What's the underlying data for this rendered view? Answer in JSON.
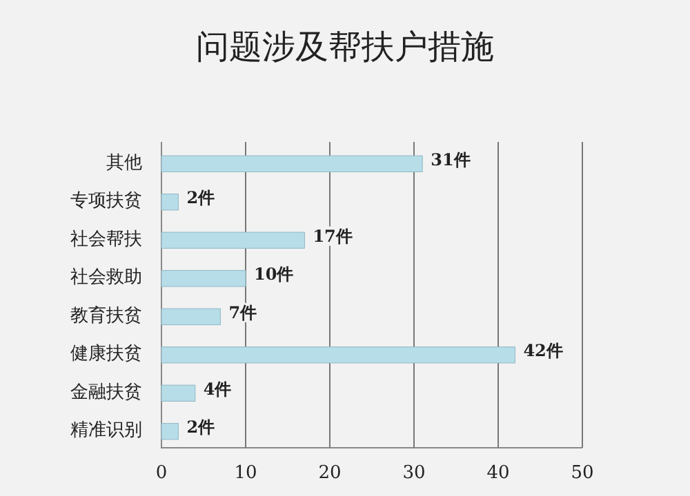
{
  "chart_data": {
    "type": "bar",
    "orientation": "horizontal",
    "title": "问题涉及帮扶户措施",
    "categories": [
      "其他",
      "专项扶贫",
      "社会帮扶",
      "社会救助",
      "教育扶贫",
      "健康扶贫",
      "金融扶贫",
      "精准识别"
    ],
    "values": [
      31,
      2,
      17,
      10,
      7,
      42,
      4,
      2
    ],
    "value_labels": [
      "31件",
      "2件",
      "17件",
      "10件",
      "7件",
      "42件",
      "4件",
      "2件"
    ],
    "color": "#b7dde8",
    "xlim": [
      0,
      50
    ],
    "xticks": [
      0,
      10,
      20,
      30,
      40,
      50
    ],
    "grid": "x"
  }
}
